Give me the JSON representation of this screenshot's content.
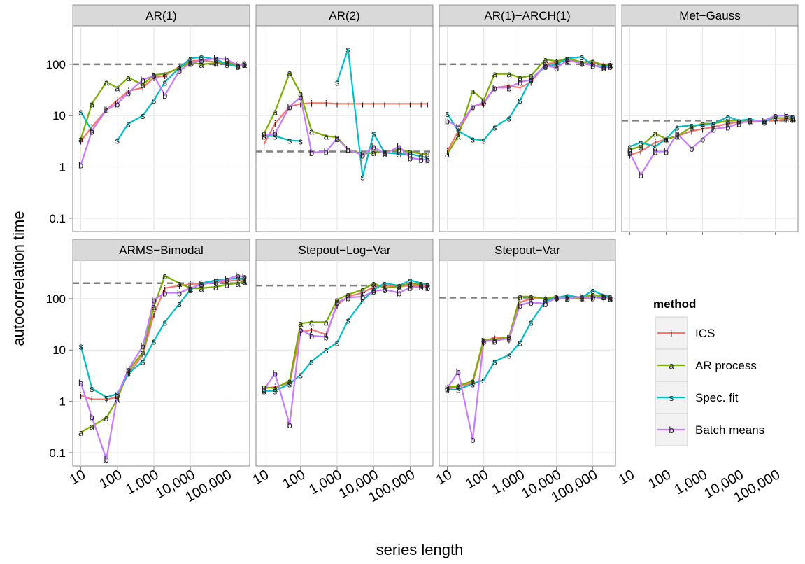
{
  "chart_data": {
    "type": "line",
    "xlabel": "series length",
    "ylabel": "autocorrelation time",
    "x_scale": "log10",
    "y_scale": "log10",
    "xlim": [
      6,
      420000
    ],
    "ylim": [
      0.055,
      560
    ],
    "x_ticks": [
      10,
      100,
      1000,
      10000,
      100000
    ],
    "x_tick_labels": [
      "10",
      "100",
      "1,000",
      "10,000",
      "100,000"
    ],
    "y_ticks": [
      0.1,
      1,
      10,
      100
    ],
    "y_tick_labels": [
      "0.1",
      "1",
      "10",
      "100"
    ],
    "grid": true,
    "legend": {
      "title": "method",
      "placement": "right",
      "entries": [
        {
          "key": "ICS",
          "letter": "i",
          "label": "ICS",
          "color": "#F8766D"
        },
        {
          "key": "AR",
          "letter": "a",
          "label": "AR process",
          "color": "#7CAE00"
        },
        {
          "key": "SF",
          "letter": "s",
          "label": "Spec. fit",
          "color": "#00BFC4"
        },
        {
          "key": "BM",
          "letter": "b",
          "label": "Batch means",
          "color": "#C77CFF"
        }
      ]
    },
    "x": [
      10,
      20,
      50,
      100,
      200,
      500,
      1000,
      2000,
      5000,
      10000,
      20000,
      50000,
      100000,
      200000,
      300000
    ],
    "panels": [
      {
        "title": "AR(1)",
        "reference": 100,
        "series": {
          "ICS": [
            3.2,
            6,
            13,
            20,
            30,
            35,
            55,
            60,
            90,
            115,
            120,
            110,
            105,
            100,
            100
          ],
          "AR": [
            3.5,
            17,
            45,
            35,
            55,
            40,
            62,
            65,
            85,
            110,
            100,
            105,
            110,
            95,
            100
          ],
          "SF": [
            12,
            5,
            null,
            3.3,
            7,
            10,
            20,
            45,
            85,
            130,
            140,
            125,
            100,
            90,
            105
          ],
          "BM": [
            1.1,
            5,
            13,
            17,
            28,
            50,
            60,
            25,
            75,
            105,
            120,
            130,
            125,
            95,
            100
          ]
        }
      },
      {
        "title": "AR(2)",
        "reference": 2,
        "series": {
          "ICS": [
            2.8,
            7,
            15,
            17,
            17.5,
            17.5,
            17,
            17,
            17,
            17,
            17,
            17,
            17,
            17,
            17
          ],
          "AR": [
            4.5,
            12,
            68,
            27,
            5,
            4,
            3.8,
            2.2,
            1.8,
            1.9,
            2,
            2.2,
            2,
            1.8,
            1.8
          ],
          "SF": [
            4,
            4,
            3.3,
            3.2,
            null,
            null,
            45,
            200,
            0.65,
            4.5,
            1.9,
            1.8,
            1.8,
            1.6,
            1.5
          ],
          "BM": [
            4,
            4.5,
            15,
            23,
            1.9,
            2,
            3.6,
            2.2,
            1.7,
            2.5,
            1.8,
            2.5,
            1.5,
            1.4,
            1.4
          ]
        }
      },
      {
        "title": "AR(1)−ARCH(1)",
        "reference": 100,
        "series": {
          "ICS": [
            2,
            5,
            15,
            17,
            35,
            38,
            35,
            45,
            100,
            110,
            115,
            110,
            105,
            100,
            100
          ],
          "AR": [
            1.8,
            4,
            30,
            20,
            65,
            65,
            55,
            60,
            125,
            115,
            130,
            110,
            115,
            95,
            100
          ],
          "SF": [
            11,
            5,
            3.5,
            3.3,
            6,
            9,
            20,
            52,
            90,
            100,
            130,
            140,
            95,
            90,
            95
          ],
          "BM": [
            8,
            6,
            15,
            18,
            35,
            35,
            45,
            50,
            95,
            85,
            120,
            105,
            95,
            85,
            90
          ]
        }
      },
      {
        "title": "Met−Gauss",
        "reference": 8,
        "series": {
          "ICS": [
            1.7,
            2,
            3,
            3.5,
            4,
            5,
            5.5,
            6,
            7,
            7.5,
            7.5,
            8,
            8,
            8.5,
            8.5
          ],
          "AR": [
            2.2,
            2.5,
            4.5,
            3.5,
            4,
            6,
            7,
            7,
            8,
            8,
            8,
            8,
            9,
            9,
            8.5
          ],
          "SF": [
            2.5,
            3,
            2.5,
            3.5,
            6,
            6.5,
            6.5,
            7,
            9.5,
            8,
            8.5,
            7.5,
            10,
            10,
            9.5
          ],
          "BM": [
            1.9,
            0.7,
            2,
            2,
            4.5,
            2.3,
            3.5,
            5.5,
            6,
            7,
            8,
            8,
            10,
            10,
            9
          ]
        }
      },
      {
        "title": "ARMS−Bimodal",
        "reference": 200,
        "series": {
          "ICS": [
            1.3,
            1.1,
            1.1,
            1.2,
            3.5,
            8,
            50,
            160,
            180,
            190,
            200,
            210,
            220,
            230,
            240
          ],
          "AR": [
            0.25,
            0.33,
            0.48,
            1.1,
            4,
            9,
            70,
            280,
            200,
            160,
            160,
            170,
            190,
            200,
            220
          ],
          "SF": [
            12,
            1.8,
            1.2,
            1.4,
            3.5,
            6,
            15,
            35,
            80,
            150,
            200,
            230,
            240,
            250,
            250
          ],
          "BM": [
            2.3,
            0.5,
            0.075,
            1.3,
            4.2,
            12,
            95,
            130,
            130,
            160,
            190,
            210,
            240,
            280,
            270
          ]
        }
      },
      {
        "title": "Stepout−Log−Var",
        "reference": 180,
        "series": {
          "ICS": [
            1.8,
            1.9,
            2.3,
            22,
            25,
            20,
            75,
            110,
            130,
            170,
            180,
            170,
            185,
            180,
            175
          ],
          "AR": [
            1.9,
            1.8,
            2.5,
            33,
            35,
            35,
            95,
            120,
            150,
            200,
            160,
            175,
            200,
            190,
            185
          ],
          "SF": [
            1.6,
            1.6,
            2.2,
            3.3,
            6,
            10,
            14,
            38,
            90,
            150,
            200,
            180,
            230,
            200,
            190
          ],
          "BM": [
            1.7,
            3.5,
            0.35,
            25,
            19,
            18,
            85,
            105,
            110,
            140,
            150,
            130,
            165,
            170,
            165
          ]
        }
      },
      {
        "title": "Stepout−Var",
        "reference": 105,
        "series": {
          "ICS": [
            1.8,
            1.9,
            2.3,
            14,
            18,
            16,
            85,
            100,
            100,
            100,
            100,
            100,
            110,
            105,
            105
          ],
          "AR": [
            1.9,
            2,
            2.5,
            16,
            16,
            18,
            110,
            110,
            100,
            110,
            100,
            105,
            120,
            110,
            105
          ],
          "SF": [
            1.7,
            1.7,
            2.2,
            2.6,
            6,
            8,
            14,
            35,
            90,
            105,
            115,
            105,
            145,
            115,
            110
          ],
          "BM": [
            1.8,
            3.8,
            0.18,
            15,
            15,
            17,
            75,
            85,
            80,
            105,
            100,
            110,
            105,
            110,
            100
          ]
        }
      }
    ]
  }
}
